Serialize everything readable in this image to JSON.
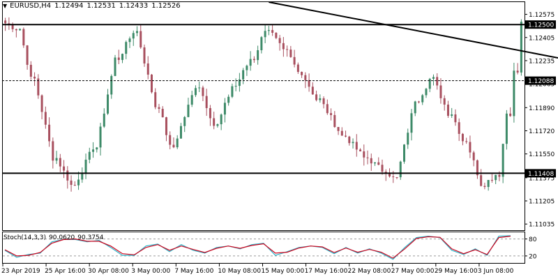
{
  "header": {
    "symbol": "EURUSD,H4",
    "open": "1.12494",
    "high": "1.12531",
    "low": "1.12433",
    "close": "1.12526"
  },
  "price_axis": {
    "ticks": [
      "1.12575",
      "1.12405",
      "1.12235",
      "1.12065",
      "1.11890",
      "1.11720",
      "1.11550",
      "1.11375",
      "1.11205",
      "1.11035"
    ]
  },
  "price_tags": [
    {
      "value": "1.12500",
      "color": "#000000"
    },
    {
      "value": "1.12088",
      "color": "#000000"
    },
    {
      "value": "1.11408",
      "color": "#000000"
    }
  ],
  "time_axis": {
    "labels": [
      "23 Apr 2019",
      "25 Apr 16:00",
      "30 Apr 08:00",
      "3 May 00:00",
      "7 May 16:00",
      "10 May 08:00",
      "15 May 00:00",
      "17 May 16:00",
      "22 May 08:00",
      "27 May 00:00",
      "29 May 16:00",
      "3 Jun 08:00"
    ]
  },
  "stoch": {
    "label": "Stoch(14,3,3)",
    "main": "90.0620",
    "signal": "90.3754",
    "levels": [
      "80",
      "20"
    ]
  },
  "colors": {
    "bull": "#3d8a68",
    "bear": "#a84f5e",
    "main_line": "#2ab4c8",
    "signal_line": "#d0021b"
  },
  "chart_data": {
    "type": "candlestick",
    "y_range": [
      1.1099,
      1.12665
    ],
    "bars": 142,
    "segments": [
      [
        0,
        3,
        1.1251,
        1.1247
      ],
      [
        4,
        7,
        1.1247,
        1.121
      ],
      [
        8,
        13,
        1.121,
        1.1152
      ],
      [
        14,
        18,
        1.1152,
        1.1132
      ],
      [
        19,
        24,
        1.1132,
        1.116
      ],
      [
        25,
        30,
        1.116,
        1.1225
      ],
      [
        31,
        35,
        1.1225,
        1.1245
      ],
      [
        36,
        41,
        1.1245,
        1.119
      ],
      [
        42,
        45,
        1.119,
        1.116
      ],
      [
        46,
        52,
        1.116,
        1.1205
      ],
      [
        53,
        57,
        1.1205,
        1.1176
      ],
      [
        58,
        62,
        1.1176,
        1.1205
      ],
      [
        63,
        67,
        1.1205,
        1.1225
      ],
      [
        68,
        71,
        1.1225,
        1.1247
      ],
      [
        72,
        76,
        1.1247,
        1.123
      ],
      [
        77,
        80,
        1.123,
        1.1215
      ],
      [
        81,
        85,
        1.1215,
        1.1195
      ],
      [
        86,
        92,
        1.1195,
        1.1168
      ],
      [
        93,
        98,
        1.1168,
        1.1152
      ],
      [
        99,
        103,
        1.1152,
        1.1143
      ],
      [
        104,
        106,
        1.1143,
        1.1137
      ],
      [
        107,
        112,
        1.1137,
        1.1195
      ],
      [
        113,
        116,
        1.1195,
        1.121
      ],
      [
        117,
        121,
        1.121,
        1.1185
      ],
      [
        122,
        125,
        1.1185,
        1.1165
      ],
      [
        126,
        130,
        1.1165,
        1.1133
      ],
      [
        131,
        134,
        1.1133,
        1.114
      ],
      [
        135,
        137,
        1.114,
        1.1185
      ],
      [
        138,
        139,
        1.1185,
        1.1215
      ],
      [
        140,
        141,
        1.1215,
        1.1251
      ]
    ],
    "trendline": {
      "from": [
        72,
        1.12665
      ],
      "to": [
        142,
        1.12302
      ]
    },
    "stoch_main": [
      40,
      15,
      25,
      30,
      70,
      78,
      78,
      70,
      75,
      50,
      22,
      22,
      55,
      62,
      35,
      60,
      40,
      30,
      50,
      55,
      45,
      60,
      65,
      22,
      35,
      50,
      55,
      50,
      28,
      50,
      30,
      45,
      30,
      8,
      50,
      85,
      90,
      85,
      40,
      25,
      45,
      22,
      90,
      92
    ],
    "stoch_signal": [
      42,
      20,
      22,
      32,
      65,
      78,
      80,
      72,
      72,
      55,
      28,
      24,
      50,
      60,
      40,
      55,
      43,
      32,
      47,
      55,
      47,
      57,
      63,
      30,
      33,
      48,
      55,
      52,
      32,
      48,
      33,
      43,
      33,
      12,
      45,
      82,
      88,
      86,
      45,
      28,
      42,
      25,
      85,
      90
    ]
  }
}
